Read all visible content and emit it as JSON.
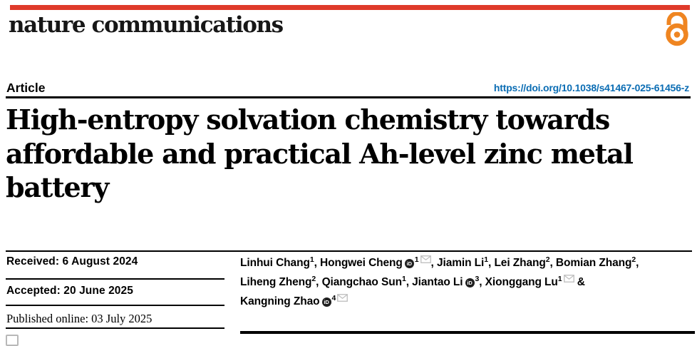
{
  "brand": {
    "logo_text": "nature communications"
  },
  "header": {
    "article_label": "Article",
    "doi": "https://doi.org/10.1038/s41467-025-61456-z"
  },
  "title": {
    "line1": "High-entropy solvation chemistry towards",
    "line2": "affordable and practical Ah-level zinc metal",
    "line3": "battery"
  },
  "dates": {
    "received": "Received: 6 August 2024",
    "accepted": "Accepted: 20 June 2025",
    "published": "Published online: 03 July 2025"
  },
  "authors": {
    "list": [
      {
        "name": "Linhui Chang",
        "sup": "1",
        "orcid": false,
        "email": false,
        "sep": ", "
      },
      {
        "name": "Hongwei Cheng",
        "sup": "1",
        "orcid": true,
        "email": true,
        "sep": ", "
      },
      {
        "name": "Jiamin Li",
        "sup": "1",
        "orcid": false,
        "email": false,
        "sep": ", "
      },
      {
        "name": "Lei Zhang",
        "sup": "2",
        "orcid": false,
        "email": false,
        "sep": ", "
      },
      {
        "name": "Bomian Zhang",
        "sup": "2",
        "orcid": false,
        "email": false,
        "sep": ",",
        "break_after": true
      },
      {
        "name": "Liheng Zheng",
        "sup": "2",
        "orcid": false,
        "email": false,
        "sep": ", "
      },
      {
        "name": "Qiangchao Sun",
        "sup": "1",
        "orcid": false,
        "email": false,
        "sep": ", "
      },
      {
        "name": "Jiantao Li",
        "sup": "3",
        "orcid": true,
        "email": false,
        "sep": ", "
      },
      {
        "name": "Xionggang Lu",
        "sup": "1",
        "orcid": false,
        "email": true,
        "sep": " &",
        "break_after": true
      },
      {
        "name": "Kangning Zhao",
        "sup": "4",
        "orcid": true,
        "email": true,
        "sep": ""
      }
    ],
    "orcid_glyph": "iD"
  },
  "icons": {
    "open_access": "open-access-icon",
    "orcid": "orcid-icon",
    "email": "envelope-icon",
    "check_updates": "check-for-updates-badge"
  },
  "colors": {
    "brand_red": "#df3a2a",
    "open_access_orange": "#ef8521",
    "link_blue": "#0b6db4"
  }
}
